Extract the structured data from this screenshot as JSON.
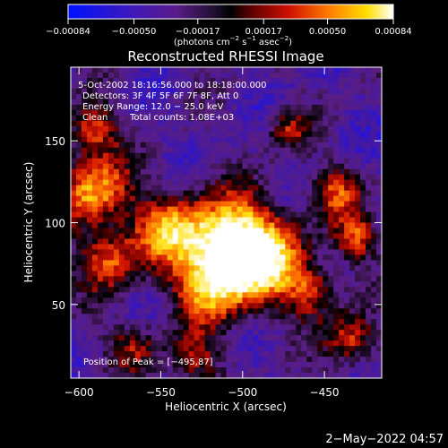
{
  "chart_data": {
    "type": "heatmap",
    "title": "Reconstructed RHESSI Image",
    "xlabel": "Heliocentric X (arcsec)",
    "ylabel": "Heliocentric Y (arcsec)",
    "xlim": [
      -605,
      -415
    ],
    "ylim": [
      5,
      195
    ],
    "xticks": [
      -600,
      -550,
      -500,
      -450
    ],
    "xtick_labels": [
      "−600",
      "−550",
      "−500",
      "−450"
    ],
    "yticks": [
      50,
      100,
      150
    ],
    "ytick_labels": [
      "50",
      "100",
      "150"
    ],
    "colorbar": {
      "range": [
        -0.00084,
        0.00084
      ],
      "ticks": [
        -0.00084,
        -0.0005,
        -0.00017,
        0.00017,
        0.0005,
        0.00084
      ],
      "tick_labels": [
        "−0.00084",
        "−0.00050",
        "−0.00017",
        "0.00017",
        "0.00050",
        "0.00084"
      ],
      "unit_main": "(photons cm",
      "unit_exp1": "−2",
      "unit_mid": " s",
      "unit_exp2": "−1",
      "unit_mid2": " asec",
      "unit_exp3": "−2",
      "unit_end": ")",
      "colormap": "rhessi-blue-purple-red-yellow-white"
    },
    "annotations": {
      "time_range": "5-Oct-2002 18:16:56.000 to 18:18:00.000",
      "detectors": "Detectors: 3F 4F 5F 6F 7F 8F, Att 0",
      "energy_range": "Energy Range: 12.0 − 25.0 keV",
      "algorithm": "Clean",
      "total_counts": "Total counts: 1.08E+03",
      "peak_position": "Position of Peak = [−495,87]"
    },
    "peak": {
      "x": -495,
      "y": 87
    }
  },
  "footer": {
    "date_stamp": "2−May−2022 04:57"
  },
  "colors": {
    "background": "#000000",
    "foreground": "#ffffff"
  }
}
